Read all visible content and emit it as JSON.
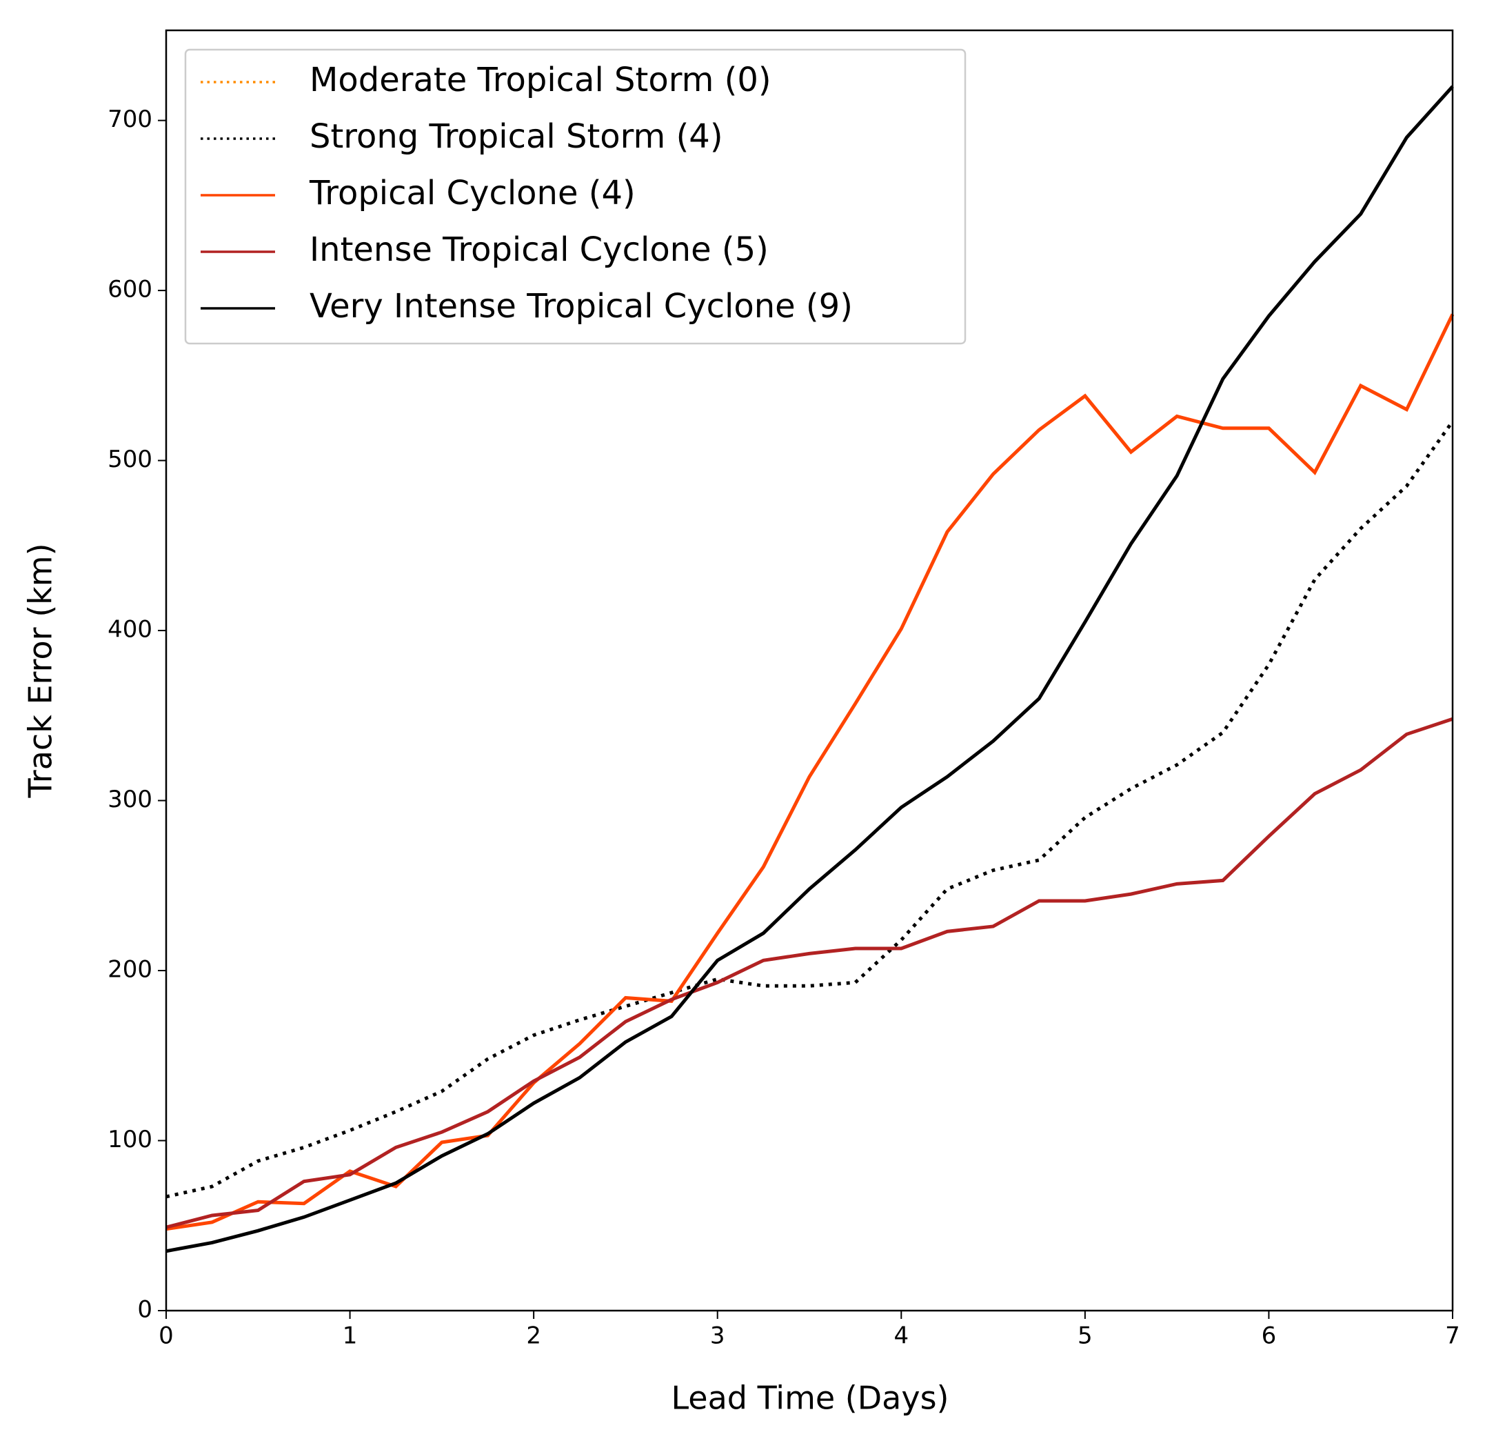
{
  "chart_data": {
    "type": "line",
    "xlabel": "Lead Time (Days)",
    "ylabel": "Track Error (km)",
    "x": [
      0,
      0.25,
      0.5,
      0.75,
      1,
      1.25,
      1.5,
      1.75,
      2,
      2.25,
      2.5,
      2.75,
      3,
      3.25,
      3.5,
      3.75,
      4,
      4.25,
      4.5,
      4.75,
      5,
      5.25,
      5.5,
      5.75,
      6,
      6.25,
      6.5,
      6.75,
      7
    ],
    "series": [
      {
        "name": "Moderate Tropical Storm (0)",
        "color": "#ff8c00",
        "dash": "dotted",
        "values": [
          null,
          null,
          null,
          null,
          null,
          null,
          null,
          null,
          null,
          null,
          null,
          null,
          null,
          null,
          null,
          null,
          null,
          null,
          null,
          null,
          null,
          null,
          null,
          null,
          null,
          null,
          null,
          null,
          null
        ]
      },
      {
        "name": "Strong Tropical Storm (4)",
        "color": "#000000",
        "dash": "dotted",
        "values": [
          67,
          73,
          88,
          96,
          106,
          117,
          129,
          148,
          162,
          171,
          179,
          187,
          195,
          191,
          191,
          193,
          218,
          248,
          259,
          265,
          290,
          307,
          321,
          340,
          380,
          430,
          460,
          485,
          523
        ]
      },
      {
        "name": "Tropical Cyclone (4)",
        "color": "#ff4500",
        "dash": "solid",
        "values": [
          48,
          52,
          64,
          63,
          82,
          73,
          99,
          103,
          134,
          157,
          184,
          182,
          222,
          261,
          314,
          357,
          401,
          458,
          492,
          518,
          538,
          505,
          526,
          519,
          519,
          493,
          544,
          530,
          586
        ]
      },
      {
        "name": "Intense Tropical Cyclone (5)",
        "color": "#b22222",
        "dash": "solid",
        "values": [
          49,
          56,
          59,
          76,
          80,
          96,
          105,
          117,
          135,
          149,
          170,
          183,
          193,
          206,
          210,
          213,
          213,
          223,
          226,
          241,
          241,
          245,
          251,
          253,
          279,
          304,
          318,
          339,
          348
        ]
      },
      {
        "name": "Very Intense Tropical Cyclone (9)",
        "color": "#000000",
        "dash": "solid",
        "values": [
          35,
          40,
          47,
          55,
          65,
          75,
          91,
          104,
          122,
          137,
          158,
          173,
          206,
          222,
          248,
          271,
          296,
          314,
          335,
          360,
          405,
          451,
          491,
          548,
          585,
          617,
          645,
          690,
          720
        ]
      }
    ],
    "xlim": [
      0,
      7
    ],
    "xticks": [
      0,
      1,
      2,
      3,
      4,
      5,
      6,
      7
    ],
    "ylim": [
      0,
      753
    ],
    "yticks": [
      0,
      100,
      200,
      300,
      400,
      500,
      600,
      700
    ],
    "legend": "upper left",
    "grid": false
  }
}
